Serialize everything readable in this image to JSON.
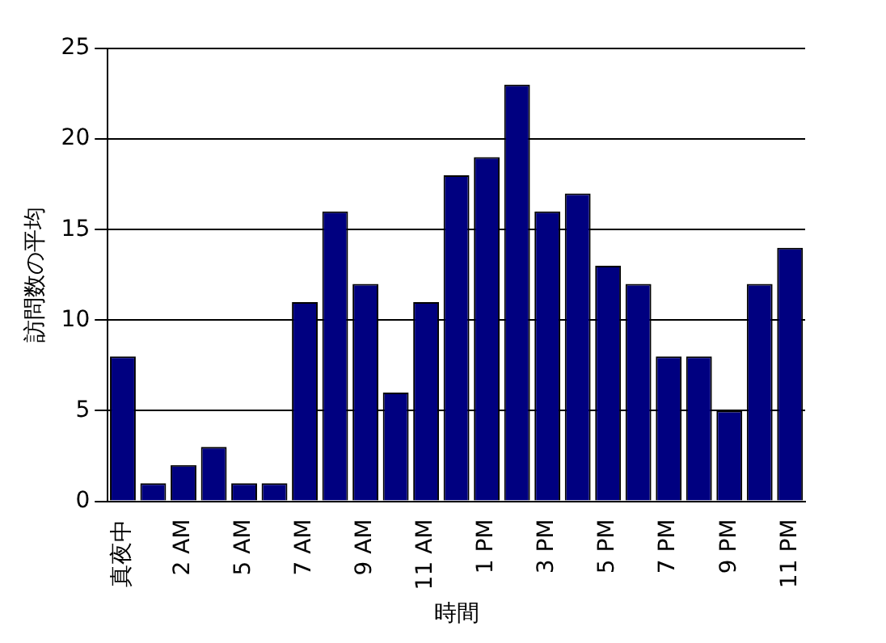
{
  "chart_data": {
    "type": "bar",
    "xlabel": "時間",
    "ylabel": "訪問数の平均",
    "categories": [
      "真夜中",
      null,
      "2 AM",
      null,
      "5 AM",
      null,
      "7 AM",
      null,
      "9 AM",
      null,
      "11 AM",
      null,
      "1 PM",
      null,
      "3 PM",
      null,
      "5 PM",
      null,
      "7 PM",
      null,
      "9 PM",
      null,
      "11 PM"
    ],
    "values": [
      8,
      1,
      2,
      3,
      1,
      1,
      11,
      16,
      12,
      6,
      11,
      18,
      19,
      23,
      16,
      17,
      13,
      12,
      8,
      8,
      5,
      12,
      14
    ],
    "color": "#000080",
    "ylim": [
      0,
      25
    ],
    "yticks": [
      0,
      5,
      10,
      15,
      20,
      25
    ],
    "grid": "y"
  }
}
